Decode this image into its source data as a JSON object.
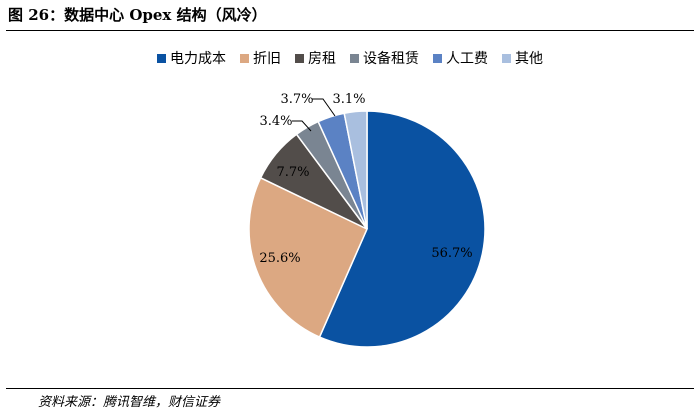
{
  "figure": {
    "title": "图 26：数据中心 Opex 结构（风冷）",
    "source": "资料来源：腾讯智维，财信证券"
  },
  "chart_data": {
    "type": "pie",
    "title": "",
    "legend_position": "top",
    "slices": [
      {
        "label": "电力成本",
        "value": 56.7,
        "display": "56.7%",
        "color": "#0a52a2"
      },
      {
        "label": "折旧",
        "value": 25.6,
        "display": "25.6%",
        "color": "#dca882"
      },
      {
        "label": "房租",
        "value": 7.7,
        "display": "7.7%",
        "color": "#524d4a"
      },
      {
        "label": "设备租赁",
        "value": 3.4,
        "display": "3.4%",
        "color": "#7a8592"
      },
      {
        "label": "人工费",
        "value": 3.7,
        "display": "3.7%",
        "color": "#5b82c4"
      },
      {
        "label": "其他",
        "value": 3.1,
        "display": "3.1%",
        "color": "#a9bfdf"
      }
    ]
  }
}
